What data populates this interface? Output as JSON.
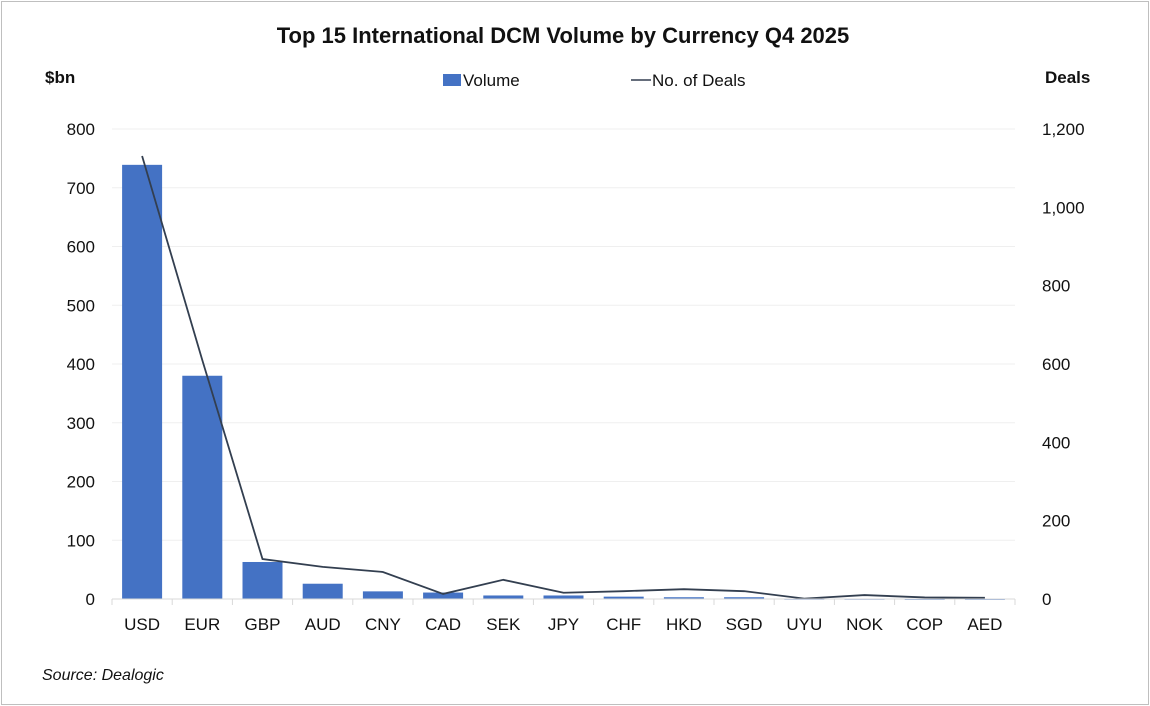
{
  "chart_data": {
    "type": "bar+line",
    "title": "Top 15 International DCM Volume by Currency Q4 2025",
    "ylabel_left": "$bn",
    "ylabel_right": "Deals",
    "source": "Source: Dealogic",
    "legend_placement": "top-center",
    "grid": true,
    "categories": [
      "USD",
      "EUR",
      "GBP",
      "AUD",
      "CNY",
      "CAD",
      "SEK",
      "JPY",
      "CHF",
      "HKD",
      "SGD",
      "UYU",
      "NOK",
      "COP",
      "AED"
    ],
    "series": [
      {
        "name": "Volume",
        "type": "bar",
        "axis": "left",
        "color": "#4472c4",
        "values": [
          739,
          380,
          63,
          26,
          13,
          11,
          6,
          6,
          4,
          3,
          3,
          0.5,
          0.5,
          0.3,
          0.3
        ]
      },
      {
        "name": "No. of Deals",
        "type": "line",
        "axis": "right",
        "color": "#333f50",
        "values": [
          1131,
          610,
          102,
          82,
          69,
          13,
          49,
          16,
          20,
          25,
          20,
          1,
          10,
          4,
          3
        ]
      }
    ],
    "ylim_left": [
      0,
      800
    ],
    "yticks_left": [
      "0",
      "100",
      "200",
      "300",
      "400",
      "500",
      "600",
      "700",
      "800"
    ],
    "ylim_right": [
      0,
      1200
    ],
    "yticks_right": [
      "0",
      "200",
      "400",
      "600",
      "800",
      "1,000",
      "1,200"
    ]
  }
}
